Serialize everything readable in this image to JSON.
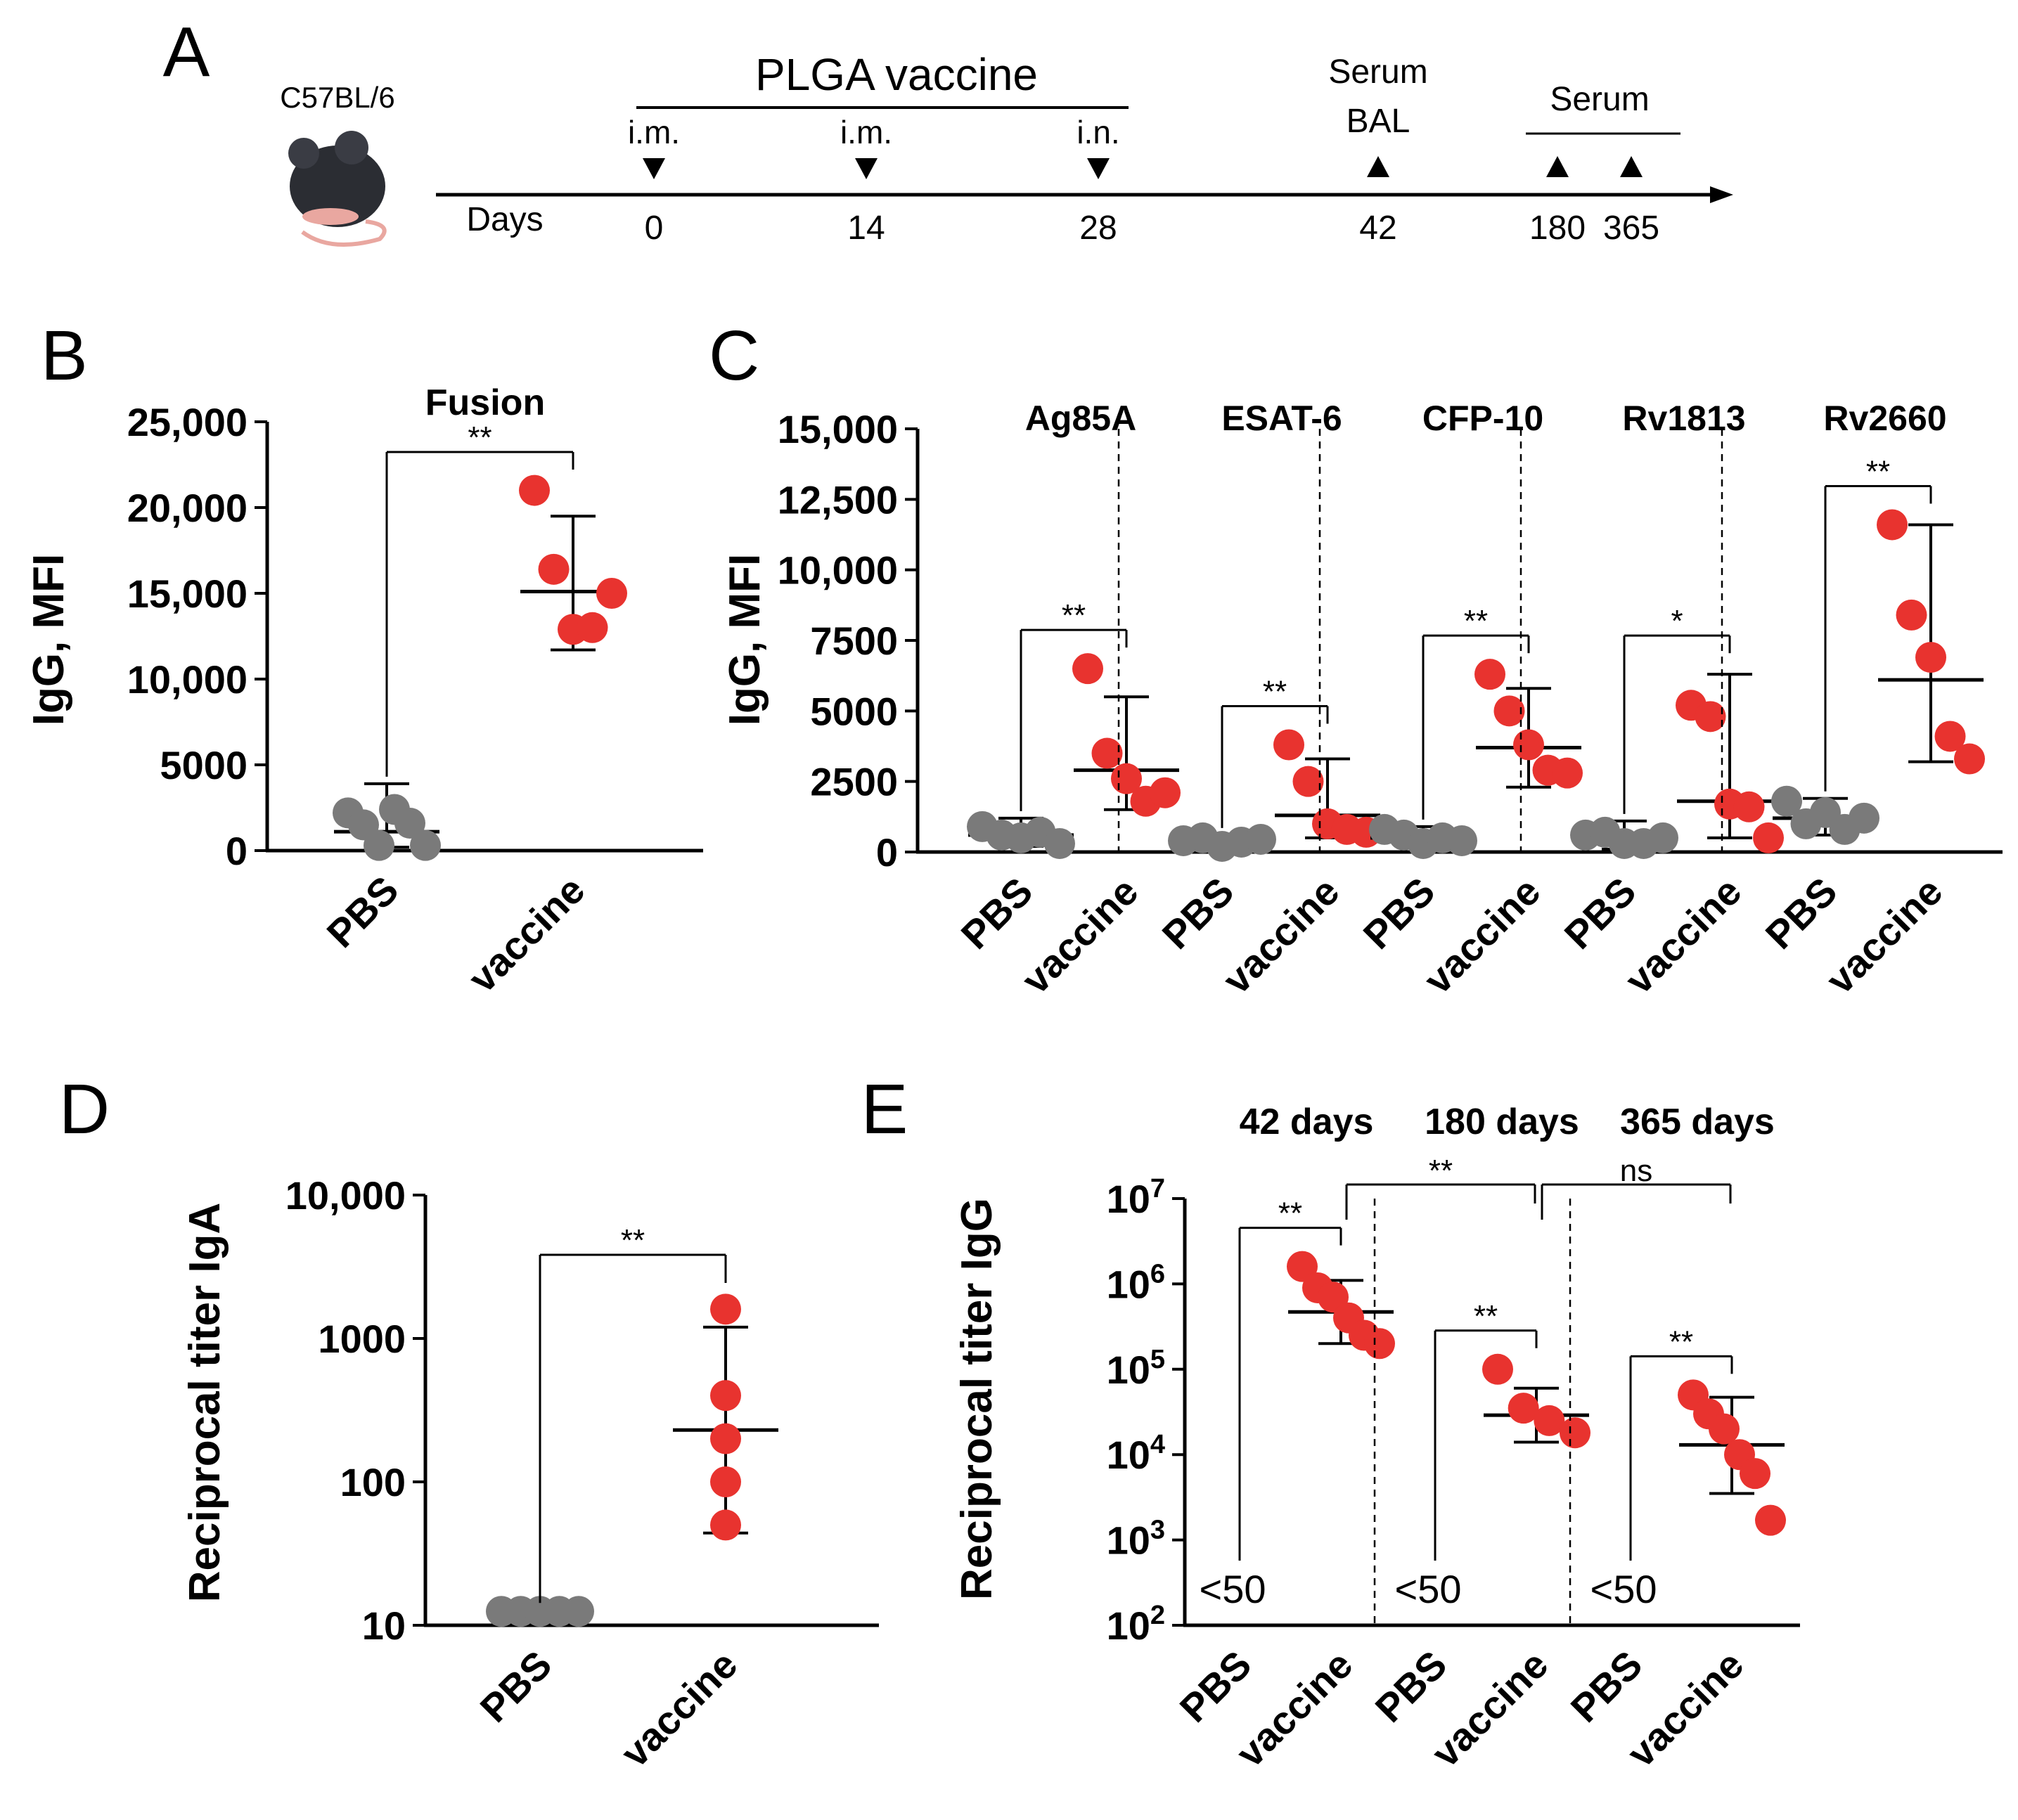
{
  "colors": {
    "pbs": "#7a7a7a",
    "vaccine": "#e8332f",
    "ink": "#000000"
  },
  "panels": {
    "A": {
      "label": "A",
      "mouse_label": "C57BL/6",
      "mouse_icon": "mouse-icon",
      "vaccine_title": "PLGA vaccine",
      "days_label": "Days",
      "events": [
        {
          "day": "0",
          "route": "i.m.",
          "marker": "down"
        },
        {
          "day": "14",
          "route": "i.m.",
          "marker": "down"
        },
        {
          "day": "28",
          "route": "i.n.",
          "marker": "down"
        },
        {
          "day": "42",
          "route": "Serum",
          "route2": "BAL",
          "marker": "up"
        },
        {
          "day": "180",
          "route": "",
          "marker": "up"
        },
        {
          "day": "365",
          "route": "",
          "marker": "up"
        }
      ],
      "serum_group_label": "Serum"
    },
    "B": {
      "label": "B"
    },
    "C": {
      "label": "C"
    },
    "D": {
      "label": "D"
    },
    "E": {
      "label": "E"
    }
  },
  "chart_data": [
    {
      "panel": "B",
      "type": "scatter",
      "title": "Fusion",
      "ylabel": "IgG, MFI",
      "ylim": [
        0,
        25000
      ],
      "yscale": "linear",
      "yticks": [
        "0",
        "5000",
        "10,000",
        "15,000",
        "20,000",
        "25,000"
      ],
      "categories": [
        "PBS",
        "vaccine"
      ],
      "groups": [
        {
          "name": "PBS",
          "points": [
            2200,
            1500,
            300,
            2400,
            1600,
            300
          ],
          "mean": 1100,
          "sd_low": 200,
          "sd_high": 3900
        },
        {
          "name": "vaccine",
          "points": [
            21000,
            16400,
            12900,
            13000,
            15000
          ],
          "mean": 15100,
          "sd_low": 11700,
          "sd_high": 19500
        }
      ],
      "significance": [
        {
          "pair": [
            0,
            1
          ],
          "label": "**"
        }
      ]
    },
    {
      "panel": "C",
      "type": "scatter",
      "ylabel": "IgG, MFI",
      "ylim": [
        0,
        15000
      ],
      "yscale": "linear",
      "yticks": [
        "0",
        "2500",
        "5000",
        "7500",
        "10,000",
        "12,500",
        "15,000"
      ],
      "subgroups": [
        {
          "title": "Ag85A",
          "categories": [
            "PBS",
            "vaccine"
          ],
          "groups": [
            {
              "name": "PBS",
              "points": [
                900,
                600,
                500,
                700,
                300
              ],
              "mean": 600,
              "sd_low": 200,
              "sd_high": 1200
            },
            {
              "name": "vaccine",
              "points": [
                6500,
                3500,
                2600,
                1800,
                2100
              ],
              "mean": 2900,
              "sd_low": 1500,
              "sd_high": 5500
            }
          ],
          "significance": [
            {
              "pair": [
                0,
                1
              ],
              "label": "**"
            }
          ]
        },
        {
          "title": "ESAT-6",
          "categories": [
            "PBS",
            "vaccine"
          ],
          "groups": [
            {
              "name": "PBS",
              "points": [
                400,
                500,
                200,
                350,
                450
              ],
              "mean": 400,
              "sd_low": 200,
              "sd_high": 600
            },
            {
              "name": "vaccine",
              "points": [
                3800,
                2500,
                1000,
                800,
                700
              ],
              "mean": 1300,
              "sd_low": 500,
              "sd_high": 3300
            }
          ],
          "significance": [
            {
              "pair": [
                0,
                1
              ],
              "label": "**"
            }
          ]
        },
        {
          "title": "CFP-10",
          "categories": [
            "PBS",
            "vaccine"
          ],
          "groups": [
            {
              "name": "PBS",
              "points": [
                800,
                600,
                300,
                500,
                400
              ],
              "mean": 500,
              "sd_low": 200,
              "sd_high": 900
            },
            {
              "name": "vaccine",
              "points": [
                6300,
                5000,
                3800,
                2900,
                2800
              ],
              "mean": 3700,
              "sd_low": 2300,
              "sd_high": 5800
            }
          ],
          "significance": [
            {
              "pair": [
                0,
                1
              ],
              "label": "**"
            }
          ]
        },
        {
          "title": "Rv1813",
          "categories": [
            "PBS",
            "vaccine"
          ],
          "groups": [
            {
              "name": "PBS",
              "points": [
                600,
                700,
                300,
                300,
                500
              ],
              "mean": 500,
              "sd_low": 100,
              "sd_high": 1100
            },
            {
              "name": "vaccine",
              "points": [
                5200,
                4800,
                1700,
                1600,
                500
              ],
              "mean": 1800,
              "sd_low": 500,
              "sd_high": 6300
            }
          ],
          "significance": [
            {
              "pair": [
                0,
                1
              ],
              "label": "*"
            }
          ]
        },
        {
          "title": "Rv2660",
          "categories": [
            "PBS",
            "vaccine"
          ],
          "groups": [
            {
              "name": "PBS",
              "points": [
                1800,
                1000,
                1400,
                800,
                1200
              ],
              "mean": 1200,
              "sd_low": 600,
              "sd_high": 1900
            },
            {
              "name": "vaccine",
              "points": [
                11600,
                8400,
                6900,
                4100,
                3300
              ],
              "mean": 6100,
              "sd_low": 3200,
              "sd_high": 11600
            }
          ],
          "significance": [
            {
              "pair": [
                0,
                1
              ],
              "label": "**"
            }
          ]
        }
      ]
    },
    {
      "panel": "D",
      "type": "scatter",
      "ylabel": "Reciprocal  titer IgA",
      "ylim": [
        10,
        10000
      ],
      "yscale": "log",
      "yticks": [
        "10",
        "100",
        "1000",
        "10,000"
      ],
      "categories": [
        "PBS",
        "vaccine"
      ],
      "groups": [
        {
          "name": "PBS",
          "points": [
            12.5,
            12.5,
            12.5,
            12.5,
            12.5
          ],
          "mean": 12.5,
          "sd_low": 12.5,
          "sd_high": 12.5
        },
        {
          "name": "vaccine",
          "points": [
            1600,
            400,
            200,
            100,
            50
          ],
          "mean": 230,
          "sd_low": 44,
          "sd_high": 1200
        }
      ],
      "significance": [
        {
          "pair": [
            0,
            1
          ],
          "label": "**"
        }
      ]
    },
    {
      "panel": "E",
      "type": "scatter",
      "ylabel": "Reciprocal titer IgG",
      "ylim": [
        100,
        10000000
      ],
      "yscale": "log",
      "ytick_base": "10",
      "ytick_exponents": [
        "2",
        "3",
        "4",
        "5",
        "6",
        "7"
      ],
      "subgroups": [
        {
          "title": "42 days",
          "categories": [
            "PBS",
            "vaccine"
          ],
          "pbs_label": "<50",
          "groups": [
            {
              "name": "PBS",
              "points": []
            },
            {
              "name": "vaccine",
              "points": [
                1600000,
                900000,
                700000,
                400000,
                250000,
                200000
              ],
              "mean": 470000,
              "sd_low": 200000,
              "sd_high": 1100000
            }
          ],
          "significance": [
            {
              "pair": [
                0,
                1
              ],
              "label": "**"
            }
          ]
        },
        {
          "title": "180 days",
          "categories": [
            "PBS",
            "vaccine"
          ],
          "pbs_label": "<50",
          "groups": [
            {
              "name": "PBS",
              "points": []
            },
            {
              "name": "vaccine",
              "points": [
                100000,
                35000,
                25000,
                18000
              ],
              "mean": 29000,
              "sd_low": 14000,
              "sd_high": 60000
            }
          ],
          "significance": [
            {
              "pair": [
                0,
                1
              ],
              "label": "**"
            }
          ]
        },
        {
          "title": "365 days",
          "categories": [
            "PBS",
            "vaccine"
          ],
          "pbs_label": "<50",
          "groups": [
            {
              "name": "PBS",
              "points": []
            },
            {
              "name": "vaccine",
              "points": [
                50000,
                30000,
                20000,
                10000,
                6000,
                1700
              ],
              "mean": 13000,
              "sd_low": 3500,
              "sd_high": 47000
            }
          ],
          "significance": [
            {
              "pair": [
                0,
                1
              ],
              "label": "**"
            }
          ]
        }
      ],
      "between_significance": [
        {
          "from": "42 days",
          "to": "180 days",
          "label": "**"
        },
        {
          "from": "180 days",
          "to": "365 days",
          "label": "ns"
        }
      ]
    }
  ]
}
